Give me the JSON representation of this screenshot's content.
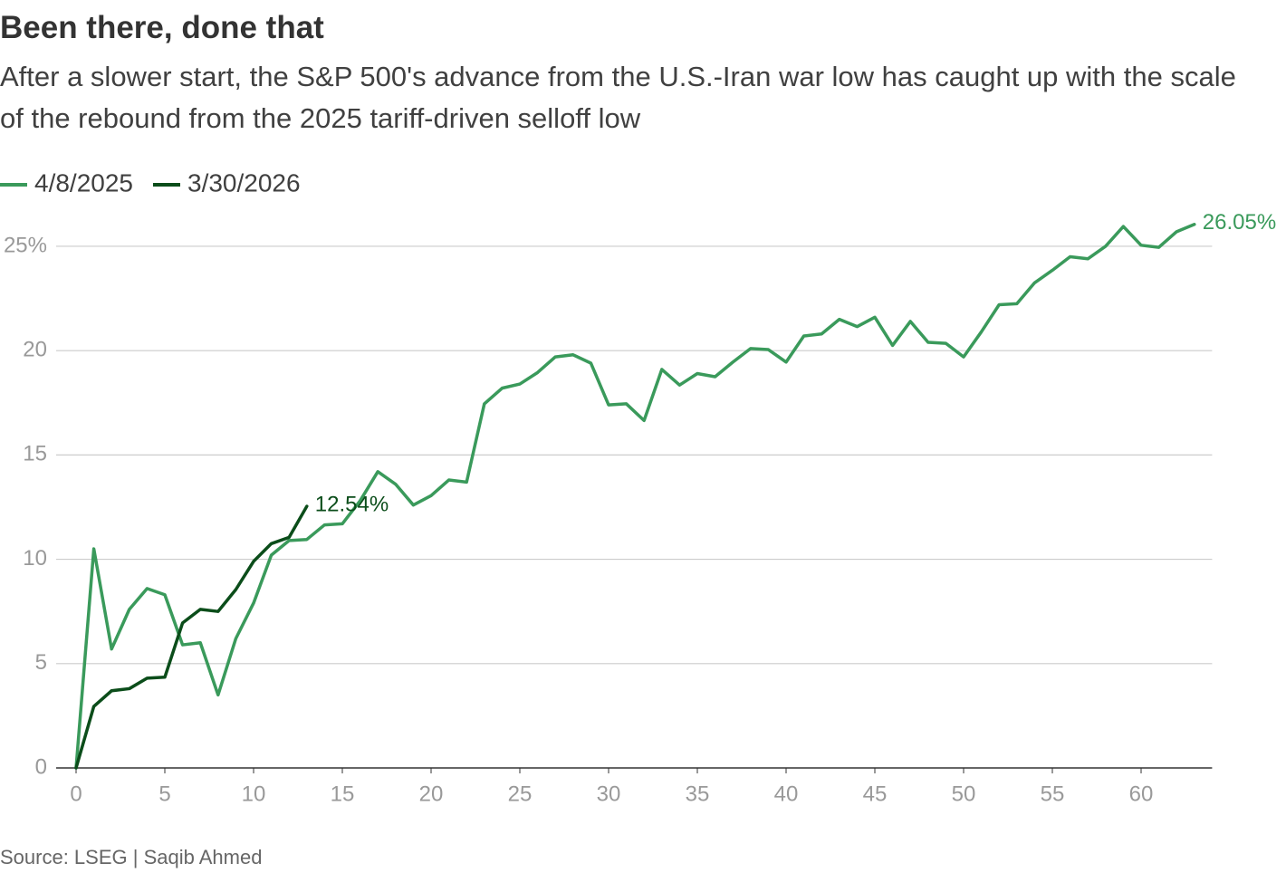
{
  "chart_data": {
    "type": "line",
    "title": "Been there, done that",
    "subtitle": "After a slower start, the S&P 500's advance from the U.S.-Iran war low has caught up with the scale of the rebound from the 2025 tariff-driven selloff low",
    "source": "Source: LSEG | Saqib Ahmed",
    "x": [
      0,
      1,
      2,
      3,
      4,
      5,
      6,
      7,
      8,
      9,
      10,
      11,
      12,
      13,
      14,
      15,
      16,
      17,
      18,
      19,
      20,
      21,
      22,
      23,
      24,
      25,
      26,
      27,
      28,
      29,
      30,
      31,
      32,
      33,
      34,
      35,
      36,
      37,
      38,
      39,
      40,
      41,
      42,
      43,
      44,
      45,
      46,
      47,
      48,
      49,
      50,
      51,
      52,
      53,
      54,
      55,
      56,
      57,
      58,
      59,
      60,
      61,
      62,
      63
    ],
    "series": [
      {
        "name": "4/8/2025",
        "color": "#3a9a5b",
        "values": [
          0,
          10.5,
          5.7,
          7.6,
          8.6,
          8.3,
          5.9,
          6.0,
          3.5,
          6.2,
          7.9,
          10.2,
          10.9,
          10.95,
          11.65,
          11.7,
          12.8,
          14.2,
          13.6,
          12.6,
          13.05,
          13.8,
          13.7,
          17.45,
          18.2,
          18.4,
          18.95,
          19.7,
          19.8,
          19.4,
          17.4,
          17.45,
          16.65,
          19.1,
          18.35,
          18.9,
          18.75,
          19.45,
          20.1,
          20.05,
          19.45,
          20.7,
          20.8,
          21.5,
          21.15,
          21.6,
          20.25,
          21.4,
          20.4,
          20.35,
          19.7,
          20.9,
          22.2,
          22.25,
          23.25,
          23.85,
          24.5,
          24.4,
          25.0,
          25.95,
          25.05,
          24.95,
          25.7,
          26.05
        ],
        "value_labels": [
          null,
          null,
          null,
          null,
          null,
          null,
          null,
          null,
          null,
          null,
          null,
          null,
          null,
          null,
          null,
          null,
          null,
          null,
          null,
          null,
          null,
          null,
          null,
          null,
          null,
          null,
          null,
          null,
          null,
          null,
          null,
          null,
          null,
          null,
          null,
          null,
          null,
          null,
          null,
          null,
          null,
          null,
          null,
          null,
          null,
          null,
          null,
          null,
          null,
          null,
          null,
          null,
          null,
          null,
          null,
          null,
          null,
          null,
          null,
          null,
          null,
          null,
          null,
          "26.05%"
        ]
      },
      {
        "name": "3/30/2026",
        "color": "#0b4d1a",
        "values": [
          0,
          2.95,
          3.7,
          3.8,
          4.3,
          4.35,
          6.95,
          7.6,
          7.5,
          8.55,
          9.9,
          10.75,
          11.05,
          12.54,
          null,
          null,
          null,
          null,
          null,
          null,
          null,
          null,
          null,
          null,
          null,
          null,
          null,
          null,
          null,
          null,
          null,
          null,
          null,
          null,
          null,
          null,
          null,
          null,
          null,
          null,
          null,
          null,
          null,
          null,
          null,
          null,
          null,
          null,
          null,
          null,
          null,
          null,
          null,
          null,
          null,
          null,
          null,
          null,
          null,
          null,
          null,
          null,
          null,
          null
        ],
        "value_labels": [
          null,
          null,
          null,
          null,
          null,
          null,
          null,
          null,
          null,
          null,
          null,
          null,
          null,
          "12.54%",
          null,
          null,
          null,
          null,
          null,
          null,
          null,
          null,
          null,
          null,
          null,
          null,
          null,
          null,
          null,
          null,
          null,
          null,
          null,
          null,
          null,
          null,
          null,
          null,
          null,
          null,
          null,
          null,
          null,
          null,
          null,
          null,
          null,
          null,
          null,
          null,
          null,
          null,
          null,
          null,
          null,
          null,
          null,
          null,
          null,
          null,
          null,
          null,
          null,
          null
        ]
      }
    ],
    "xlim": [
      0,
      64
    ],
    "xticks": [
      0,
      5,
      10,
      15,
      20,
      25,
      30,
      35,
      40,
      45,
      50,
      55,
      60
    ],
    "ylim": [
      0,
      26.5
    ],
    "yticks": [
      0,
      5,
      10,
      15,
      20,
      {
        "value": 25,
        "label": "25%"
      }
    ],
    "grid": true,
    "legend": "top-left"
  }
}
